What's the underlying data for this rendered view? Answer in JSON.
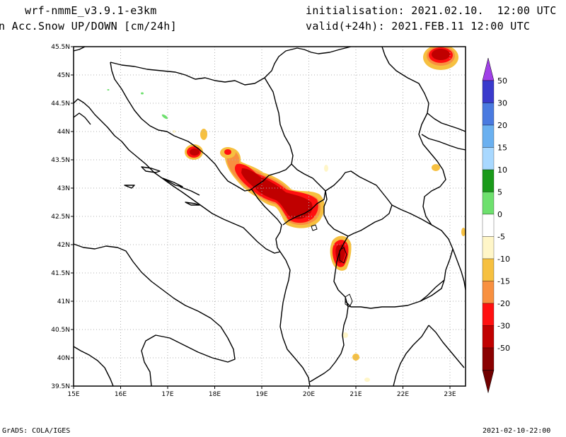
{
  "header": {
    "model": "wrf-nmmE_v3.9.1-e3km",
    "field": "n Acc.Snow UP/DOWN [cm/24h]",
    "init": "initialisation: 2021.02.10.  12:00 UTC",
    "valid": "valid(+24h): 2021.FEB.11 12:00 UTC"
  },
  "map": {
    "lon_labels": [
      "15E",
      "16E",
      "17E",
      "18E",
      "19E",
      "20E",
      "21E",
      "22E",
      "23E"
    ],
    "lat_labels": [
      "45.5N",
      "45N",
      "44.5N",
      "44N",
      "43.5N",
      "43N",
      "42.5N",
      "42N",
      "41.5N",
      "41N",
      "40.5N",
      "40N",
      "39.5N"
    ]
  },
  "colorbar": {
    "labels": [
      "50",
      "30",
      "20",
      "15",
      "10",
      "5",
      "0",
      "-5",
      "-10",
      "-15",
      "-20",
      "-30",
      "-50"
    ],
    "colors": [
      "#3a3acc",
      "#4a7ae0",
      "#6ab0f0",
      "#a8d8ff",
      "#1a9a1a",
      "#6ee06e",
      "#ffffff",
      "#fff6c8",
      "#f6c040",
      "#f89040",
      "#ff1010",
      "#c00000",
      "#8a0000"
    ],
    "top_tip": "#a040e8",
    "bottom_tip": "#700000"
  },
  "footer": {
    "left": "GrADS: COLA/IGES",
    "right": "2021-02-10-22:00"
  }
}
